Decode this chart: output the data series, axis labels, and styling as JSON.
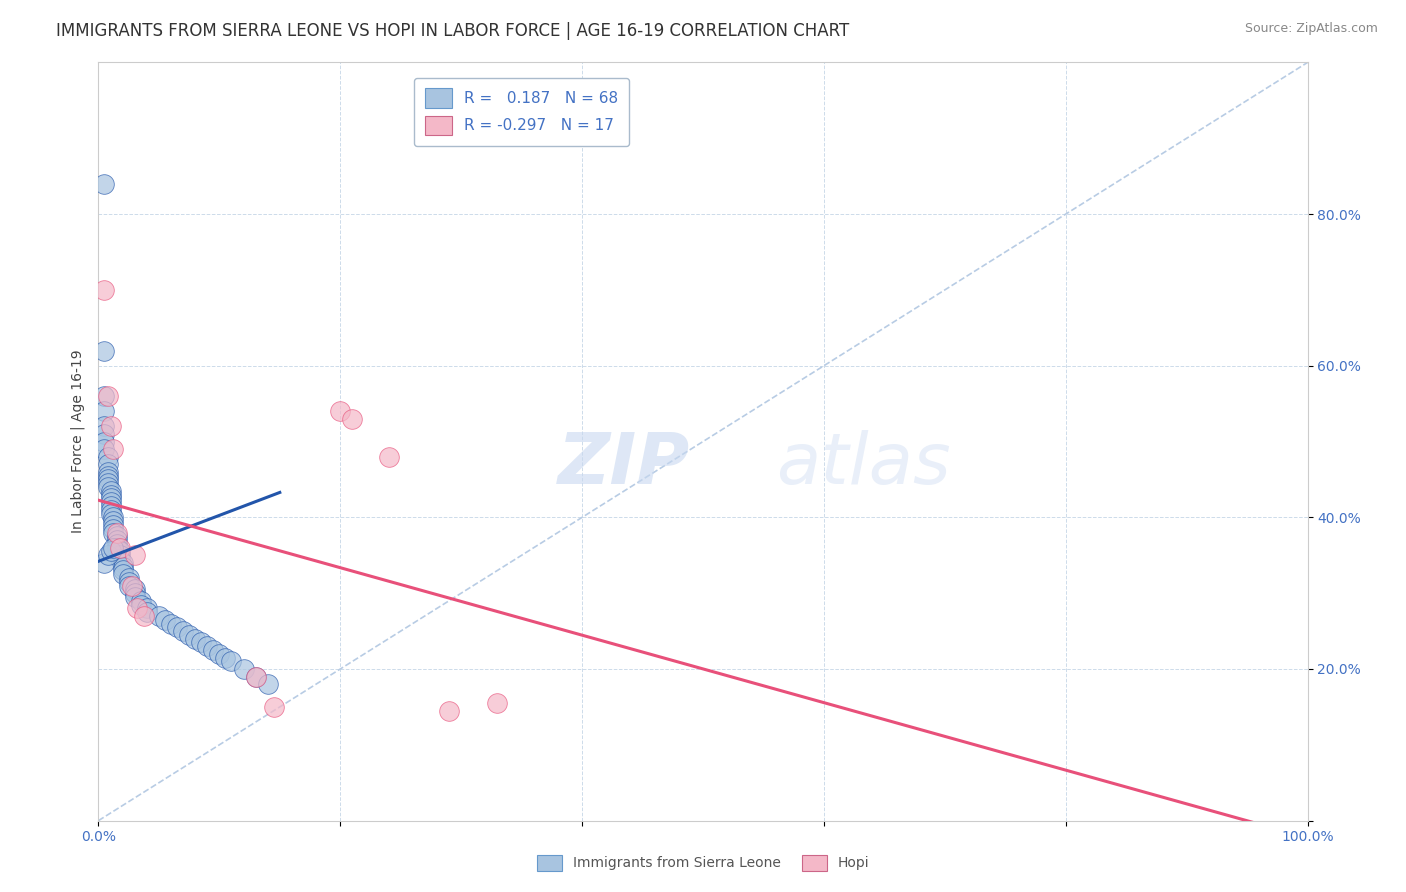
{
  "title": "IMMIGRANTS FROM SIERRA LEONE VS HOPI IN LABOR FORCE | AGE 16-19 CORRELATION CHART",
  "source": "Source: ZipAtlas.com",
  "ylabel": "In Labor Force | Age 16-19",
  "xlim": [
    0,
    1
  ],
  "ylim": [
    0,
    1
  ],
  "xticks": [
    0.0,
    0.2,
    0.4,
    0.6,
    0.8,
    1.0
  ],
  "yticks": [
    0.0,
    0.2,
    0.4,
    0.6,
    0.8
  ],
  "xticklabels": [
    "0.0%",
    "",
    "",
    "",
    "",
    "100.0%"
  ],
  "yticklabels_right": [
    "",
    "20.0%",
    "40.0%",
    "60.0%",
    "80.0%"
  ],
  "blue_color": "#a8c4e0",
  "pink_color": "#f4b8c8",
  "blue_line_color": "#2255aa",
  "pink_line_color": "#e8507a",
  "ref_line_color": "#b8cce4",
  "legend_r1": "R =   0.187   N = 68",
  "legend_r2": "R = -0.297   N = 17",
  "legend_label1": "Immigrants from Sierra Leone",
  "legend_label2": "Hopi",
  "blue_r": 0.187,
  "pink_r": -0.297,
  "background_color": "#ffffff",
  "grid_color": "#c8d8e8",
  "title_fontsize": 12,
  "axis_fontsize": 10,
  "tick_fontsize": 10,
  "watermark_zip": "ZIP",
  "watermark_atlas": "atlas",
  "watermark_color_zip": "#c8d8f0",
  "watermark_color_atlas": "#c8d8f0",
  "blue_scatter_x": [
    0.005,
    0.005,
    0.005,
    0.005,
    0.005,
    0.005,
    0.005,
    0.005,
    0.008,
    0.008,
    0.008,
    0.008,
    0.008,
    0.008,
    0.008,
    0.01,
    0.01,
    0.01,
    0.01,
    0.01,
    0.01,
    0.01,
    0.012,
    0.012,
    0.012,
    0.012,
    0.012,
    0.015,
    0.015,
    0.015,
    0.015,
    0.018,
    0.018,
    0.018,
    0.02,
    0.02,
    0.02,
    0.02,
    0.025,
    0.025,
    0.025,
    0.03,
    0.03,
    0.03,
    0.035,
    0.035,
    0.04,
    0.04,
    0.05,
    0.055,
    0.06,
    0.065,
    0.07,
    0.075,
    0.08,
    0.085,
    0.09,
    0.095,
    0.1,
    0.105,
    0.11,
    0.12,
    0.13,
    0.14,
    0.005,
    0.008,
    0.01,
    0.012
  ],
  "blue_scatter_y": [
    0.84,
    0.62,
    0.56,
    0.54,
    0.52,
    0.51,
    0.5,
    0.49,
    0.48,
    0.47,
    0.46,
    0.455,
    0.45,
    0.445,
    0.44,
    0.435,
    0.43,
    0.425,
    0.42,
    0.415,
    0.41,
    0.405,
    0.4,
    0.395,
    0.39,
    0.385,
    0.38,
    0.375,
    0.37,
    0.365,
    0.36,
    0.355,
    0.35,
    0.345,
    0.34,
    0.335,
    0.33,
    0.325,
    0.32,
    0.315,
    0.31,
    0.305,
    0.3,
    0.295,
    0.29,
    0.285,
    0.28,
    0.275,
    0.27,
    0.265,
    0.26,
    0.255,
    0.25,
    0.245,
    0.24,
    0.235,
    0.23,
    0.225,
    0.22,
    0.215,
    0.21,
    0.2,
    0.19,
    0.18,
    0.34,
    0.35,
    0.355,
    0.36
  ],
  "pink_scatter_x": [
    0.005,
    0.008,
    0.01,
    0.012,
    0.015,
    0.018,
    0.13,
    0.145,
    0.2,
    0.21,
    0.24,
    0.29,
    0.33,
    0.03,
    0.028,
    0.032,
    0.038
  ],
  "pink_scatter_y": [
    0.7,
    0.56,
    0.52,
    0.49,
    0.38,
    0.36,
    0.19,
    0.15,
    0.54,
    0.53,
    0.48,
    0.145,
    0.155,
    0.35,
    0.31,
    0.28,
    0.27
  ]
}
